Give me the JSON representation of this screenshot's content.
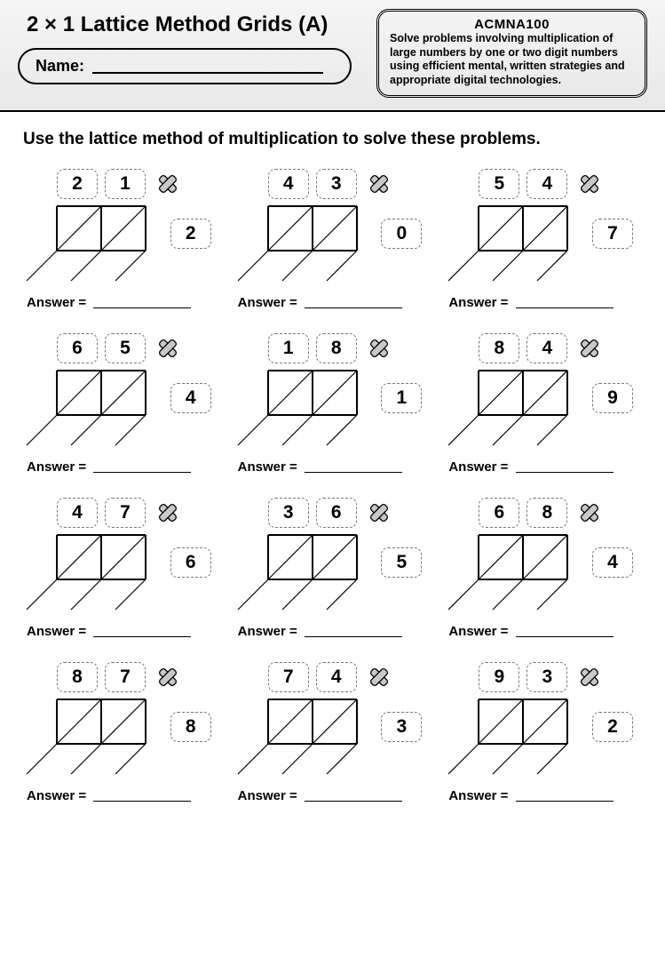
{
  "header": {
    "title": "2 × 1 Lattice Method Grids (A)",
    "name_label": "Name:",
    "standard_code": "ACMNA100",
    "standard_desc": "Solve  problems involving multiplication of large numbers by one or two digit numbers using efficient mental, written strategies and appropriate digital technologies."
  },
  "instruction": "Use the lattice method of multiplication to solve these problems.",
  "answer_label": "Answer =",
  "colors": {
    "page_bg": "#ffffff",
    "ink": "#000000",
    "dash_border": "#777777",
    "mult_fill": "#c8c8c8",
    "header_grad_top": "#f5f5f5",
    "header_grad_bottom": "#e8e8e8"
  },
  "lattice": {
    "cell": 50,
    "cols": 2,
    "rows": 1,
    "stroke_width": 2,
    "diag_stroke_width": 1.2
  },
  "problems": [
    {
      "top": [
        "2",
        "1"
      ],
      "side": "2"
    },
    {
      "top": [
        "4",
        "3"
      ],
      "side": "0"
    },
    {
      "top": [
        "5",
        "4"
      ],
      "side": "7"
    },
    {
      "top": [
        "6",
        "5"
      ],
      "side": "4"
    },
    {
      "top": [
        "1",
        "8"
      ],
      "side": "1"
    },
    {
      "top": [
        "8",
        "4"
      ],
      "side": "9"
    },
    {
      "top": [
        "4",
        "7"
      ],
      "side": "6"
    },
    {
      "top": [
        "3",
        "6"
      ],
      "side": "5"
    },
    {
      "top": [
        "6",
        "8"
      ],
      "side": "4"
    },
    {
      "top": [
        "8",
        "7"
      ],
      "side": "8"
    },
    {
      "top": [
        "7",
        "4"
      ],
      "side": "3"
    },
    {
      "top": [
        "9",
        "3"
      ],
      "side": "2"
    }
  ]
}
